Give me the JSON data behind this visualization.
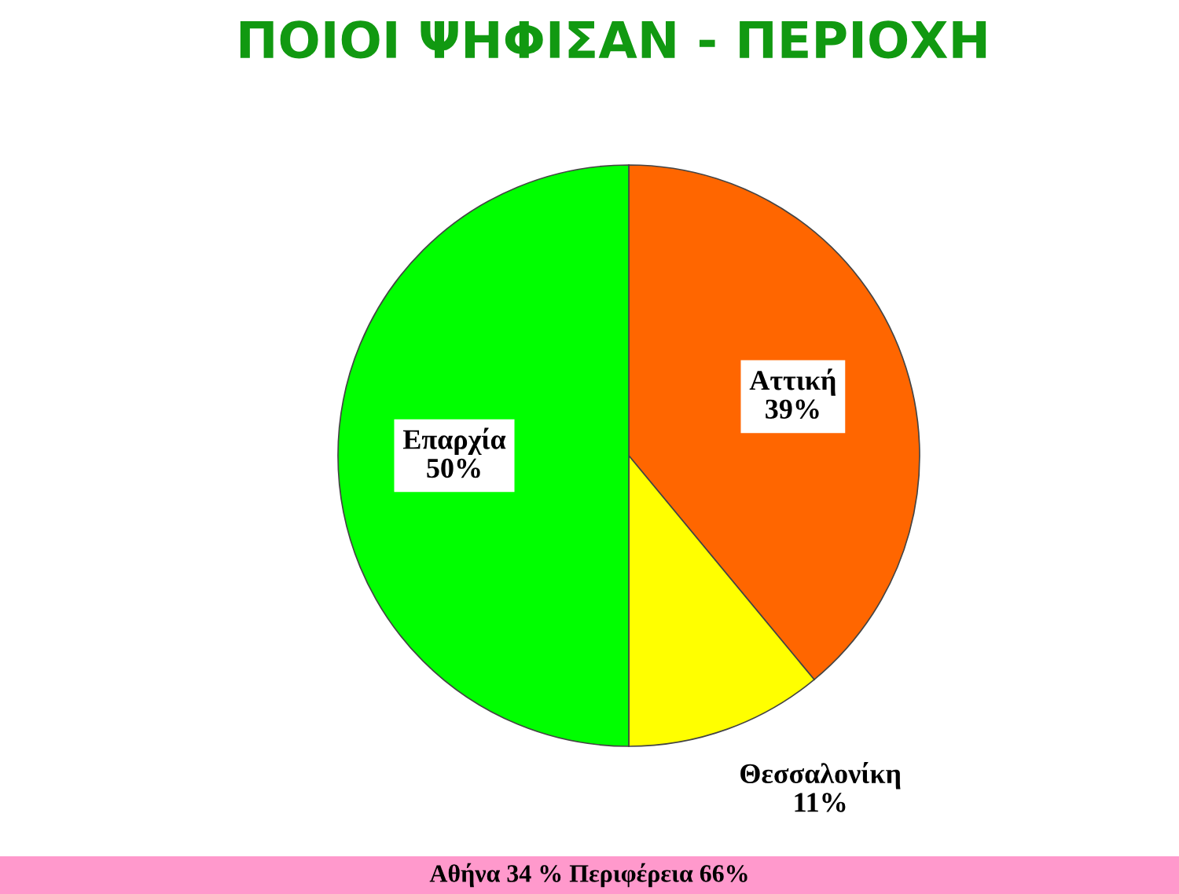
{
  "chart_data": {
    "type": "pie",
    "title": "ΠΟΙΟΙ ΨΗΦΙΣΑΝ - ΠΕΡΙΟΧΗ",
    "categories": [
      "Αττική",
      "Θεσσαλονίκη",
      "Επαρχία"
    ],
    "values": [
      39,
      11,
      50
    ],
    "colors": [
      "#ff6600",
      "#ffff00",
      "#00ff00"
    ],
    "value_labels": [
      "39%",
      "11%",
      "50%"
    ],
    "annotations": [
      "Αθήνα 34 % Περιφέρεια 66%"
    ]
  }
}
